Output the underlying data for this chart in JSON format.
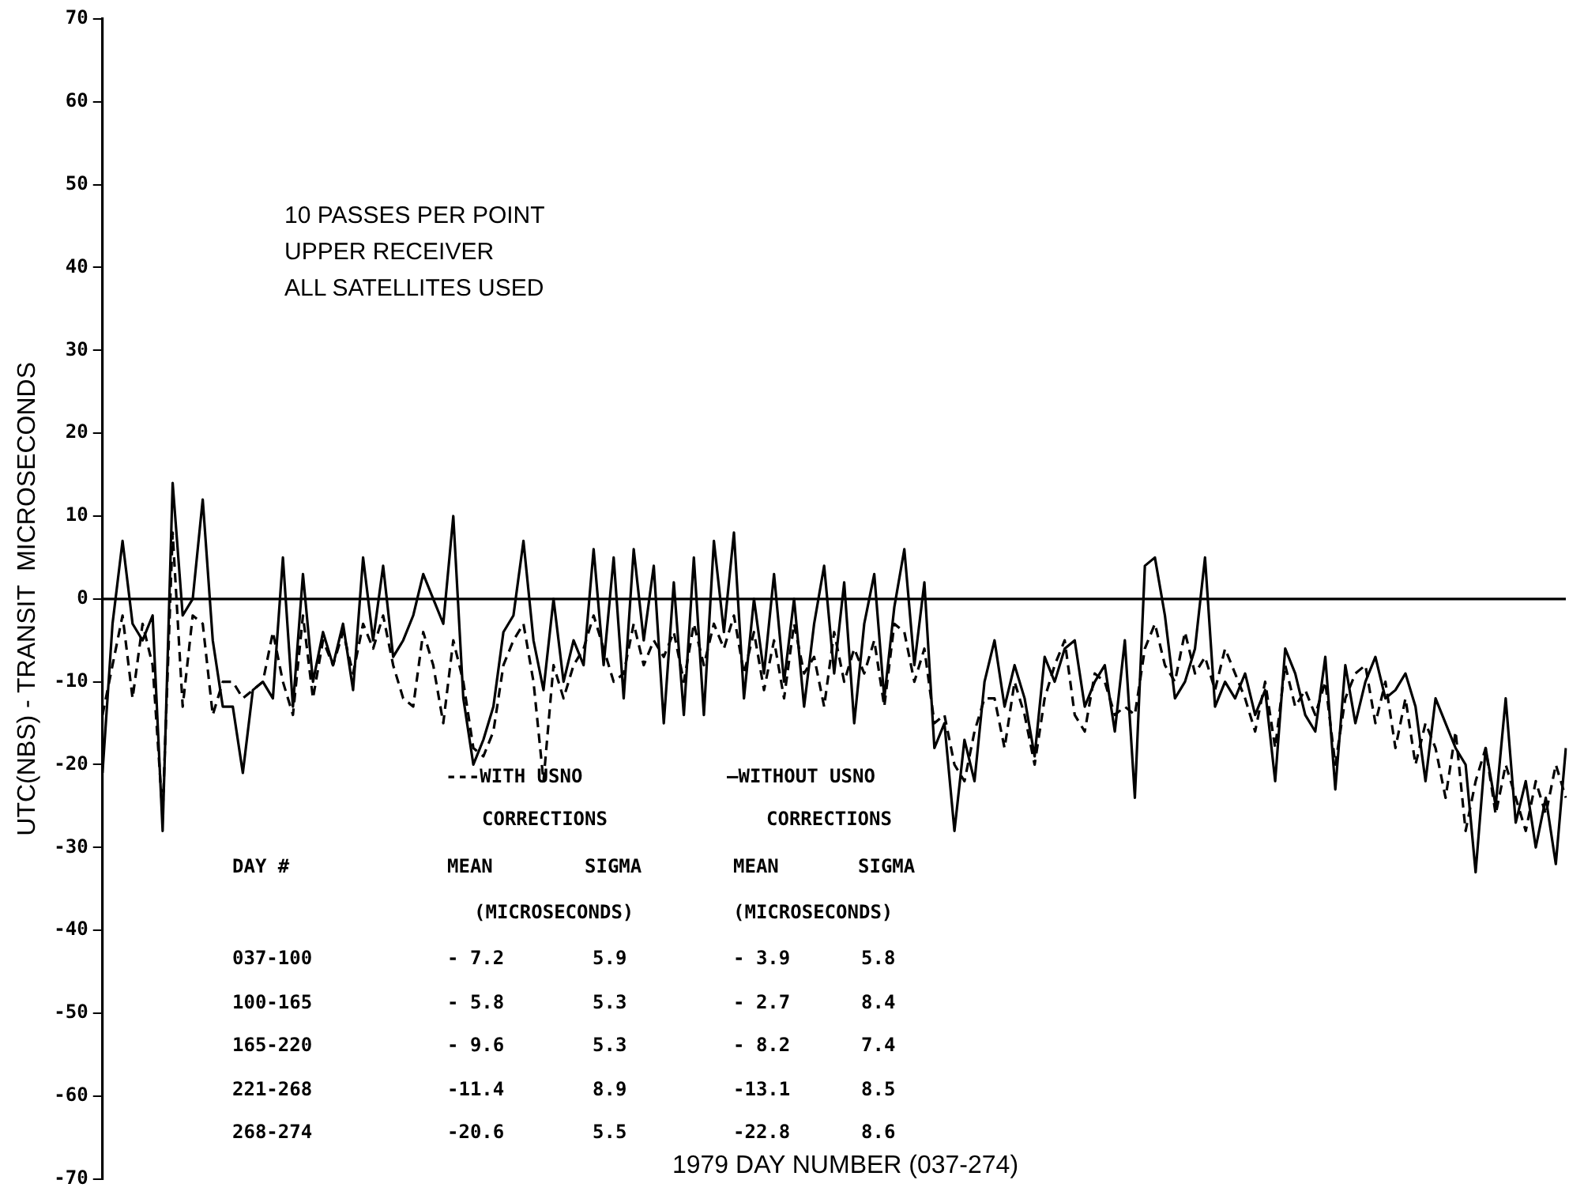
{
  "chart_data": {
    "type": "line",
    "xlabel": "1979 DAY NUMBER (037-274)",
    "ylabel": "UTC(NBS) - TRANSIT  MICROSECONDS",
    "categories": [
      null,
      null,
      null,
      null,
      null,
      null,
      null,
      null,
      null,
      null,
      null,
      null,
      null,
      null,
      null,
      null,
      null,
      null,
      null,
      null,
      null,
      null,
      null,
      null,
      null,
      null,
      null,
      null,
      null,
      null,
      null,
      null,
      null,
      null,
      null,
      null,
      null,
      null,
      null,
      null,
      null,
      null,
      null,
      null,
      null,
      null,
      null,
      null,
      null,
      null,
      null,
      null,
      null,
      null,
      null,
      null,
      null,
      null,
      null,
      null,
      null,
      null,
      null,
      null,
      null,
      null,
      null,
      null,
      null,
      null,
      null,
      null,
      null,
      null,
      null,
      null,
      null,
      null,
      null,
      null,
      null,
      null,
      null,
      null,
      null,
      null,
      null,
      null,
      null,
      null,
      null,
      null,
      null,
      null,
      null,
      null,
      null,
      null,
      null,
      null,
      null,
      null,
      null,
      null,
      null,
      null,
      null,
      null,
      null,
      null,
      null,
      null,
      null,
      null,
      null,
      null,
      null,
      null,
      null,
      null,
      null,
      null,
      null,
      null,
      null,
      null,
      null,
      null,
      null,
      null,
      null,
      null,
      null,
      null,
      null,
      null,
      null,
      null,
      null,
      null,
      null,
      null,
      null,
      null,
      null,
      null,
      null
    ],
    "series": [
      {
        "color": "#000000",
        "line_style": "dashed",
        "values": [
          -14,
          -8,
          -2,
          -12,
          -3,
          -8,
          -26,
          8,
          -13,
          -2,
          -3,
          -14,
          -10,
          -10,
          -12,
          -11,
          -10,
          -4,
          -10,
          -14,
          -2,
          -12,
          -5,
          -8,
          -4,
          -9,
          -3,
          -6,
          -2,
          -8,
          -12,
          -13,
          -4,
          -8,
          -15,
          -5,
          -10,
          -18,
          -19,
          -16,
          -8,
          -5,
          -3,
          -10,
          -22,
          -8,
          -12,
          -8,
          -6,
          -2,
          -6,
          -10,
          -9,
          -3,
          -8,
          -5,
          -7,
          -4,
          -10,
          -3,
          -8,
          -3,
          -6,
          -2,
          -9,
          -4,
          -11,
          -5,
          -12,
          -3,
          -9,
          -7,
          -13,
          -4,
          -10,
          -6,
          -9,
          -5,
          -13,
          -3,
          -4,
          -10,
          -6,
          -15,
          -14,
          -20,
          -22,
          -16,
          -12,
          -12,
          -18,
          -10,
          -14,
          -20,
          -12,
          -8,
          -5,
          -14,
          -16,
          -9,
          -10,
          -14,
          -13,
          -14,
          -6,
          -3,
          -8,
          -10,
          -4,
          -9,
          -7,
          -11,
          -6,
          -9,
          -12,
          -16,
          -10,
          -18,
          -8,
          -13,
          -11,
          -14,
          -10,
          -20,
          -12,
          -9,
          -8,
          -15,
          -10,
          -18,
          -12,
          -20,
          -15,
          -18,
          -24,
          -16,
          -28,
          -22,
          -18,
          -26,
          -20,
          -24,
          -28,
          -22,
          -26,
          -20,
          -24
        ]
      },
      {
        "color": "#000000",
        "line_style": "solid",
        "values": [
          -21,
          -3,
          7,
          -3,
          -5,
          -2,
          -28,
          14,
          -2,
          0,
          12,
          -5,
          -13,
          -13,
          -21,
          -11,
          -10,
          -12,
          5,
          -13,
          3,
          -10,
          -4,
          -8,
          -3,
          -11,
          5,
          -5,
          4,
          -7,
          -5,
          -2,
          3,
          0,
          -3,
          10,
          -12,
          -20,
          -17,
          -13,
          -4,
          -2,
          7,
          -5,
          -11,
          0,
          -10,
          -5,
          -8,
          6,
          -8,
          5,
          -12,
          6,
          -5,
          4,
          -15,
          2,
          -14,
          5,
          -14,
          7,
          -4,
          8,
          -12,
          0,
          -9,
          3,
          -10,
          0,
          -13,
          -3,
          4,
          -9,
          2,
          -15,
          -3,
          3,
          -12,
          -1,
          6,
          -8,
          2,
          -18,
          -15,
          -28,
          -17,
          -22,
          -10,
          -5,
          -13,
          -8,
          -12,
          -19,
          -7,
          -10,
          -6,
          -5,
          -13,
          -10,
          -8,
          -16,
          -5,
          -24,
          4,
          5,
          -2,
          -12,
          -10,
          -6,
          5,
          -13,
          -10,
          -12,
          -9,
          -14,
          -11,
          -22,
          -6,
          -9,
          -14,
          -16,
          -7,
          -23,
          -8,
          -15,
          -10,
          -7,
          -12,
          -11,
          -9,
          -13,
          -22,
          -12,
          -15,
          -18,
          -20,
          -33,
          -18,
          -25,
          -12,
          -27,
          -22,
          -30,
          -24,
          -32,
          -18
        ]
      }
    ],
    "ylim": [
      -70,
      70
    ],
    "yticks": [
      -70,
      -60,
      -50,
      -40,
      -30,
      -20,
      -10,
      0,
      10,
      20,
      30,
      40,
      50,
      60,
      70
    ],
    "ref_lines": [
      {
        "axis": "y",
        "value": 0,
        "color": "#000000"
      }
    ],
    "grid": false,
    "legend": false,
    "marker": "none",
    "tick_labels": "y",
    "annotations": [
      "10 PASSES PER POINT",
      "UPPER RECEIVER",
      "ALL SATELLITES USED",
      "---WITH USNO",
      "CORRECTIONS",
      "—WITHOUT USNO",
      "CORRECTIONS",
      "DAY #",
      "MEAN",
      "SIGMA",
      "MEAN",
      "SIGMA",
      "(MICROSECONDS)",
      "(MICROSECONDS)",
      "037-100",
      "- 7.2",
      "5.9",
      "- 3.9",
      "5.8",
      "100-165",
      "- 5.8",
      "5.3",
      "- 2.7",
      "8.4",
      "165-220",
      "- 9.6",
      "5.3",
      "- 8.2",
      "7.4",
      "221-268",
      "-11.4",
      "8.9",
      "-13.1",
      "8.5",
      "268-274",
      "-20.6",
      "5.5",
      "-22.8",
      "8.6"
    ]
  }
}
